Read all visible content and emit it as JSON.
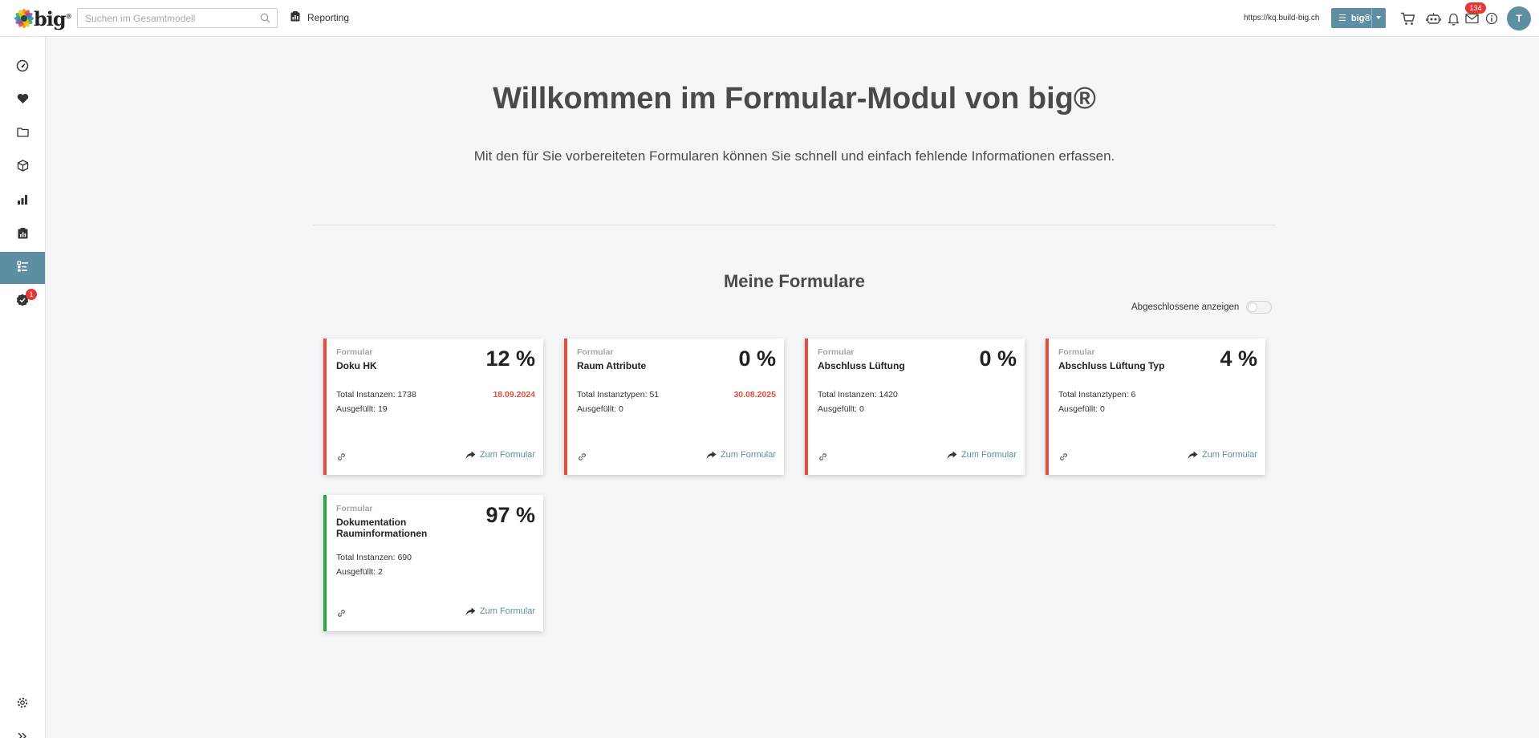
{
  "header": {
    "logo_text": "big",
    "logo_reg": "®",
    "search_placeholder": "Suchen im Gesamtmodell",
    "reporting_label": "Reporting",
    "url": "https://kq.build-big.ch",
    "big_button_label": "big®",
    "mail_badge": "134",
    "avatar_initial": "T",
    "icons": [
      "cart-icon",
      "robot-icon",
      "bell-icon",
      "mail-icon",
      "info-icon"
    ]
  },
  "sidebar": {
    "items": [
      {
        "icon": "dashboard-icon"
      },
      {
        "icon": "heart-icon"
      },
      {
        "icon": "folder-icon"
      },
      {
        "icon": "cube-icon"
      },
      {
        "icon": "bar-chart-icon"
      },
      {
        "icon": "report-icon"
      },
      {
        "icon": "forms-icon",
        "active": true
      },
      {
        "icon": "badge-check-icon",
        "badge": "1"
      }
    ],
    "bottom": [
      {
        "icon": "settings-icon"
      },
      {
        "icon": "expand-icon"
      }
    ]
  },
  "main": {
    "title": "Willkommen im Formular-Modul von big®",
    "subtitle": "Mit den für Sie vorbereiteten Formularen können Sie schnell und einfach fehlende Informationen erfassen.",
    "section_title": "Meine Formulare",
    "toggle_label": "Abgeschlossene anzeigen",
    "toggle_on": false
  },
  "cards": [
    {
      "kind": "Formular",
      "name": "Doku HK",
      "percent": "12 %",
      "total": "Total Instanzen: 1738",
      "filled": "Ausgefüllt: 19",
      "date": "18.09.2024",
      "goto": "Zum Formular",
      "status_color": "#e74c3c"
    },
    {
      "kind": "Formular",
      "name": "Raum Attribute",
      "percent": "0 %",
      "total": "Total Instanztypen: 51",
      "filled": "Ausgefüllt: 0",
      "date": "30.08.2025",
      "goto": "Zum Formular",
      "status_color": "#e74c3c"
    },
    {
      "kind": "Formular",
      "name": "Abschluss Lüftung",
      "percent": "0 %",
      "total": "Total Instanzen: 1420",
      "filled": "Ausgefüllt: 0",
      "date": "",
      "goto": "Zum Formular",
      "status_color": "#e74c3c"
    },
    {
      "kind": "Formular",
      "name": "Abschluss Lüftung Typ",
      "percent": "4 %",
      "total": "Total Instanztypen: 6",
      "filled": "Ausgefüllt: 0",
      "date": "",
      "goto": "Zum Formular",
      "status_color": "#e74c3c"
    },
    {
      "kind": "Formular",
      "name": "Dokumentation Rauminformationen",
      "percent": "97 %",
      "total": "Total Instanzen: 690",
      "filled": "Ausgefüllt: 2",
      "date": "",
      "goto": "Zum Formular",
      "status_color": "#27a844"
    }
  ]
}
